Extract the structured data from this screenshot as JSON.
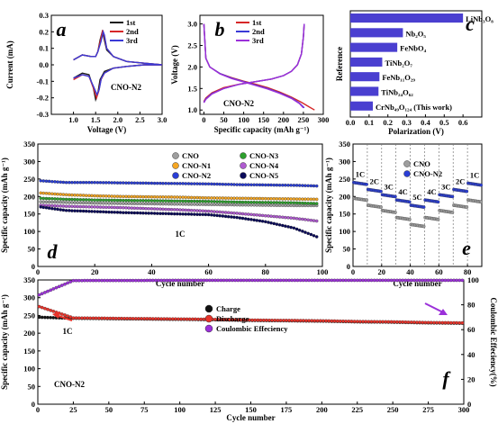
{
  "chart_data": [
    {
      "panel": "a",
      "type": "line",
      "xlabel": "Voltage (V)",
      "ylabel": "Current (mA)",
      "xlim": [
        0.5,
        3.0
      ],
      "ylim": [
        -0.3,
        0.3
      ],
      "xticks": [
        "1.0",
        "1.5",
        "2.0",
        "2.5",
        "3.0"
      ],
      "yticks": [
        "-0.3",
        "-0.2",
        "-0.1",
        "0.0",
        "0.1",
        "0.2",
        "0.3"
      ],
      "annotation": "CNO-N2",
      "legend_position": "top-right",
      "series": [
        {
          "name": "1st",
          "color": "#1a1a1a",
          "x": [
            1.0,
            1.2,
            1.35,
            1.45,
            1.5,
            1.55,
            1.6,
            1.7,
            1.9,
            2.2,
            2.6,
            3.0,
            3.0,
            2.6,
            2.2,
            1.9,
            1.75,
            1.68,
            1.65,
            1.6,
            1.55,
            1.5,
            1.4,
            1.2,
            1.0
          ],
          "y": [
            -0.08,
            -0.05,
            -0.06,
            -0.14,
            -0.21,
            -0.17,
            -0.09,
            -0.04,
            -0.02,
            -0.01,
            0.0,
            0.0,
            0.0,
            0.01,
            0.02,
            0.05,
            0.09,
            0.17,
            0.2,
            0.15,
            0.08,
            0.05,
            0.05,
            0.06,
            0.03
          ]
        },
        {
          "name": "2nd",
          "color": "#d62728",
          "x": [
            1.0,
            1.2,
            1.35,
            1.45,
            1.52,
            1.57,
            1.62,
            1.7,
            1.9,
            2.2,
            2.6,
            3.0,
            3.0,
            2.6,
            2.2,
            1.9,
            1.75,
            1.69,
            1.66,
            1.61,
            1.55,
            1.5,
            1.4,
            1.2,
            1.0
          ],
          "y": [
            -0.09,
            -0.06,
            -0.07,
            -0.14,
            -0.2,
            -0.16,
            -0.09,
            -0.05,
            -0.02,
            -0.01,
            0.0,
            0.0,
            0.0,
            0.01,
            0.02,
            0.05,
            0.1,
            0.18,
            0.21,
            0.15,
            0.08,
            0.05,
            0.05,
            0.06,
            0.03
          ]
        },
        {
          "name": "3rd",
          "color": "#3a3ad6",
          "x": [
            1.0,
            1.2,
            1.35,
            1.45,
            1.53,
            1.58,
            1.63,
            1.7,
            1.9,
            2.2,
            2.6,
            3.0,
            3.0,
            2.6,
            2.2,
            1.9,
            1.75,
            1.7,
            1.67,
            1.62,
            1.55,
            1.5,
            1.4,
            1.2,
            1.0
          ],
          "y": [
            -0.08,
            -0.06,
            -0.07,
            -0.13,
            -0.18,
            -0.15,
            -0.08,
            -0.05,
            -0.02,
            -0.01,
            0.0,
            0.0,
            0.0,
            0.01,
            0.02,
            0.05,
            0.1,
            0.18,
            0.2,
            0.14,
            0.08,
            0.05,
            0.05,
            0.06,
            0.03
          ]
        }
      ]
    },
    {
      "panel": "b",
      "type": "line",
      "xlabel": "Specific capacity (mAh g⁻¹)",
      "ylabel": "Voltage (V)",
      "xlim": [
        -10,
        300
      ],
      "ylim": [
        0.9,
        3.2
      ],
      "xticks": [
        "0",
        "50",
        "100",
        "150",
        "200",
        "250",
        "300"
      ],
      "yticks": [
        "1.0",
        "1.5",
        "2.0",
        "2.5",
        "3.0"
      ],
      "annotation": "CNO-N2",
      "legend_position": "top-right",
      "series": [
        {
          "name": "1st",
          "color": "#d62728",
          "discharge_x": [
            0,
            5,
            15,
            40,
            70,
            100,
            130,
            160,
            190,
            220,
            245,
            265,
            278
          ],
          "discharge_y": [
            3.0,
            2.2,
            2.0,
            1.85,
            1.75,
            1.67,
            1.6,
            1.52,
            1.42,
            1.3,
            1.18,
            1.07,
            1.0
          ],
          "charge_x": [
            0,
            5,
            20,
            50,
            90,
            130,
            170,
            200,
            220,
            235,
            245,
            250,
            252
          ],
          "charge_y": [
            1.2,
            1.28,
            1.4,
            1.52,
            1.6,
            1.66,
            1.72,
            1.8,
            1.9,
            2.05,
            2.3,
            2.7,
            3.0
          ]
        },
        {
          "name": "2nd",
          "color": "#3a3ad6",
          "discharge_x": [
            0,
            5,
            15,
            40,
            70,
            100,
            130,
            160,
            190,
            220,
            240,
            252
          ],
          "discharge_y": [
            3.0,
            2.2,
            2.0,
            1.85,
            1.74,
            1.66,
            1.58,
            1.5,
            1.4,
            1.28,
            1.16,
            1.05
          ],
          "charge_x": [
            0,
            5,
            20,
            50,
            90,
            130,
            170,
            200,
            220,
            235,
            245,
            250,
            252
          ],
          "charge_y": [
            1.18,
            1.26,
            1.38,
            1.5,
            1.6,
            1.66,
            1.72,
            1.8,
            1.9,
            2.05,
            2.3,
            2.7,
            3.0
          ]
        },
        {
          "name": "3rd",
          "color": "#9b30d9",
          "discharge_x": [
            0,
            5,
            15,
            40,
            70,
            100,
            130,
            160,
            190,
            220,
            240,
            250
          ],
          "discharge_y": [
            3.0,
            2.2,
            2.0,
            1.84,
            1.73,
            1.65,
            1.57,
            1.49,
            1.39,
            1.27,
            1.15,
            1.05
          ],
          "charge_x": [
            0,
            5,
            20,
            50,
            90,
            130,
            170,
            200,
            220,
            235,
            245,
            250,
            252
          ],
          "charge_y": [
            1.17,
            1.25,
            1.37,
            1.5,
            1.6,
            1.66,
            1.72,
            1.8,
            1.9,
            2.05,
            2.3,
            2.7,
            3.0
          ]
        }
      ]
    },
    {
      "panel": "c",
      "type": "bar",
      "orientation": "horizontal",
      "xlabel": "Polarization (V)",
      "ylabel": "Reference",
      "xlim": [
        0.0,
        0.7
      ],
      "xticks": [
        "0.0",
        "0.1",
        "0.2",
        "0.3",
        "0.4",
        "0.5",
        "0.6"
      ],
      "categories": [
        "LiNb₃O₈",
        "Nb₂O₅",
        "FeNbO₄",
        "TiNb₂O₇",
        "FeNb₁₁O₂₉",
        "TiNb₂₄O₆₂",
        "CrNb₄₉O₁₂₄ (This work)"
      ],
      "values": [
        0.6,
        0.28,
        0.25,
        0.17,
        0.155,
        0.15,
        0.12
      ],
      "color": "#4a3fd0"
    },
    {
      "panel": "d",
      "type": "scatter",
      "xlabel": "Cycle number",
      "ylabel": "Specific capacity (mAh g⁻¹)",
      "xlim": [
        0,
        100
      ],
      "ylim": [
        0,
        350
      ],
      "xticks": [
        "0",
        "20",
        "40",
        "60",
        "80",
        "100"
      ],
      "yticks": [
        "0",
        "50",
        "100",
        "150",
        "200",
        "250",
        "300",
        "350"
      ],
      "annotation": "1C",
      "legend_position": "top-right",
      "series": [
        {
          "name": "CNO",
          "color": "#9e9e9e",
          "x": [
            1,
            10,
            20,
            30,
            40,
            50,
            60,
            70,
            80,
            90,
            98
          ],
          "y": [
            185,
            183,
            181,
            180,
            179,
            178,
            177,
            176,
            175,
            174,
            174
          ]
        },
        {
          "name": "CNO-N1",
          "color": "#f5a623",
          "x": [
            1,
            10,
            20,
            30,
            40,
            50,
            60,
            70,
            80,
            90,
            98
          ],
          "y": [
            210,
            205,
            202,
            200,
            199,
            198,
            196,
            195,
            194,
            193,
            192
          ]
        },
        {
          "name": "CNO-N2",
          "color": "#2a3ed6",
          "x": [
            1,
            10,
            20,
            30,
            40,
            50,
            60,
            70,
            80,
            90,
            98
          ],
          "y": [
            245,
            240,
            240,
            239,
            238,
            237,
            236,
            234,
            233,
            232,
            230
          ]
        },
        {
          "name": "CNO-N3",
          "color": "#2ca02c",
          "x": [
            1,
            10,
            20,
            30,
            40,
            50,
            60,
            70,
            80,
            90,
            98
          ],
          "y": [
            195,
            192,
            190,
            189,
            188,
            187,
            186,
            184,
            183,
            182,
            180
          ]
        },
        {
          "name": "CNO-N4",
          "color": "#b05bd1",
          "x": [
            1,
            10,
            20,
            30,
            40,
            50,
            60,
            70,
            80,
            90,
            98
          ],
          "y": [
            175,
            172,
            170,
            168,
            165,
            162,
            158,
            152,
            145,
            138,
            130
          ]
        },
        {
          "name": "CNO-N5",
          "color": "#0a0a5a",
          "x": [
            1,
            10,
            20,
            30,
            40,
            50,
            60,
            70,
            80,
            90,
            98
          ],
          "y": [
            170,
            160,
            157,
            154,
            152,
            150,
            148,
            140,
            128,
            110,
            85
          ]
        }
      ]
    },
    {
      "panel": "e",
      "type": "scatter",
      "xlabel": "Cycle number",
      "ylabel": "Specific capacity (mAh g⁻¹)",
      "xlim": [
        0,
        90
      ],
      "ylim": [
        0,
        350
      ],
      "xticks": [
        "0",
        "20",
        "40",
        "60",
        "80"
      ],
      "yticks": [
        "0",
        "50",
        "100",
        "150",
        "200",
        "250",
        "300",
        "350"
      ],
      "legend_position": "top-center",
      "rate_labels": [
        "1C",
        "2C",
        "3C",
        "4C",
        "5C",
        "4C",
        "3C",
        "2C",
        "1C"
      ],
      "series": [
        {
          "name": "CNO",
          "color": "#9e9e9e",
          "segment_values": [
            195,
            175,
            160,
            140,
            120,
            140,
            160,
            175,
            190
          ]
        },
        {
          "name": "CNO-N2",
          "color": "#2a3ed6",
          "segment_values": [
            240,
            220,
            205,
            190,
            175,
            190,
            205,
            220,
            238
          ]
        }
      ]
    },
    {
      "panel": "f",
      "type": "scatter",
      "xlabel": "Cycle number",
      "ylabel": "Specific capacity (mAh g⁻¹)",
      "ylabel_right": "Coulombic Effeciency(%)",
      "xlim": [
        0,
        300
      ],
      "ylim": [
        0,
        350
      ],
      "ylim_right": [
        0,
        100
      ],
      "xticks": [
        "0",
        "25",
        "50",
        "75",
        "100",
        "125",
        "150",
        "175",
        "200",
        "225",
        "250",
        "275",
        "300"
      ],
      "yticks": [
        "0",
        "50",
        "100",
        "150",
        "200",
        "250",
        "300",
        "350"
      ],
      "yticks_right": [
        "0",
        "20",
        "40",
        "60",
        "80",
        "100"
      ],
      "annotation": "1C",
      "sample_label": "CNO-N2",
      "legend_position": "top-left",
      "series": [
        {
          "name": "Charge",
          "color": "#111111",
          "x": [
            1,
            25,
            50,
            75,
            100,
            125,
            150,
            175,
            200,
            225,
            250,
            275,
            300
          ],
          "y": [
            245,
            242,
            241,
            240,
            239,
            238,
            236,
            235,
            234,
            232,
            231,
            229,
            228
          ]
        },
        {
          "name": "Discharge",
          "color": "#e8332a",
          "x": [
            1,
            25,
            50,
            75,
            100,
            125,
            150,
            175,
            200,
            225,
            250,
            275,
            300
          ],
          "y": [
            275,
            243,
            242,
            241,
            240,
            239,
            237,
            236,
            235,
            233,
            232,
            230,
            229
          ]
        },
        {
          "name": "Coulombic Effeciency",
          "color": "#9b30d9",
          "axis": "right",
          "x": [
            1,
            25,
            50,
            75,
            100,
            125,
            150,
            175,
            200,
            225,
            250,
            275,
            300
          ],
          "y": [
            88,
            99.5,
            99.6,
            99.6,
            99.7,
            99.7,
            99.7,
            99.7,
            99.7,
            99.7,
            99.7,
            99.7,
            99.7
          ]
        }
      ]
    }
  ]
}
